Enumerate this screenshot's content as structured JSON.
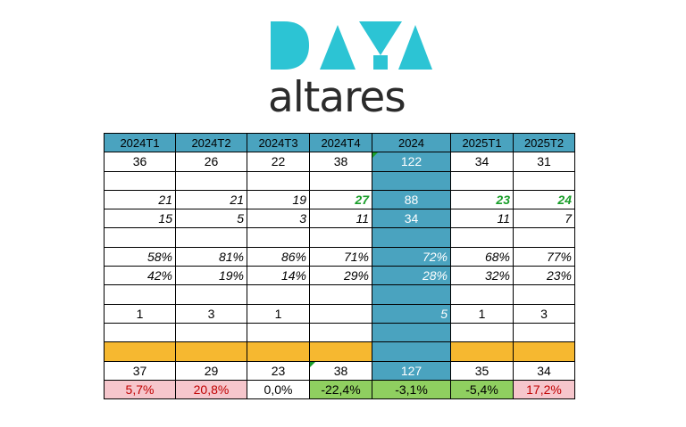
{
  "logo": {
    "mark_text": "DATA",
    "wordmark": "altares",
    "mark_color": "#2cc4d4"
  },
  "colors": {
    "header": "#4aa3bf",
    "highlight": "#4aa3bf",
    "orange": "#f6b830",
    "pink": "#f6c6cc",
    "green": "#8fcf60",
    "green_text": "#1a9e2a",
    "red_text": "#c00000"
  },
  "table": {
    "headers": [
      "2024T1",
      "2024T2",
      "2024T3",
      "2024T4",
      "2024",
      "2025T1",
      "2025T2"
    ],
    "rows": [
      {
        "cells": [
          "36",
          "26",
          "22",
          "38",
          "122",
          "34",
          "31"
        ]
      },
      {
        "cells": [
          "",
          "",
          "",
          "",
          "",
          "",
          ""
        ]
      },
      {
        "cells": [
          "21",
          "21",
          "19",
          "27",
          "88",
          "23",
          "24"
        ]
      },
      {
        "cells": [
          "15",
          "5",
          "3",
          "11",
          "34",
          "11",
          "7"
        ]
      },
      {
        "cells": [
          "",
          "",
          "",
          "",
          "",
          "",
          ""
        ]
      },
      {
        "cells": [
          "58%",
          "81%",
          "86%",
          "71%",
          "72%",
          "68%",
          "77%"
        ]
      },
      {
        "cells": [
          "42%",
          "19%",
          "14%",
          "29%",
          "28%",
          "32%",
          "23%"
        ]
      },
      {
        "cells": [
          "",
          "",
          "",
          "",
          "",
          "",
          ""
        ]
      },
      {
        "cells": [
          "1",
          "3",
          "1",
          "",
          "5",
          "1",
          "3"
        ]
      },
      {
        "cells": [
          "",
          "",
          "",
          "",
          "",
          "",
          ""
        ]
      },
      {
        "cells": [
          "",
          "",
          "",
          "",
          "",
          "",
          ""
        ]
      },
      {
        "cells": [
          "37",
          "29",
          "23",
          "38",
          "127",
          "35",
          "34"
        ]
      },
      {
        "cells": [
          "5,7%",
          "20,8%",
          "0,0%",
          "-22,4%",
          "-3,1%",
          "-5,4%",
          "17,2%"
        ]
      }
    ]
  }
}
